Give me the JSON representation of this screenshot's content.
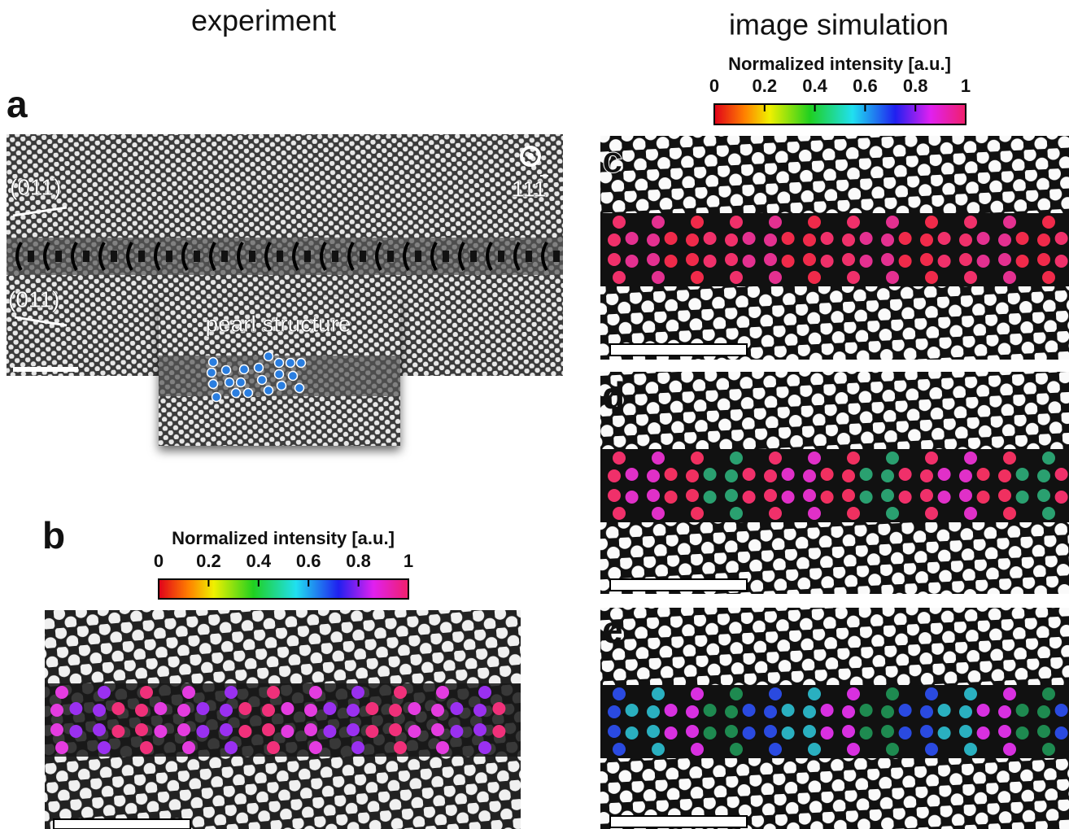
{
  "headers": {
    "experiment": "experiment",
    "simulation": "image simulation"
  },
  "panels": {
    "a": {
      "letter": "a",
      "plane_labels": [
        "(011)",
        "(011)"
      ],
      "direction": "111",
      "inset_label": "pearl structure"
    },
    "b": {
      "letter": "b"
    },
    "c": {
      "letter": "c"
    },
    "d": {
      "letter": "d"
    },
    "e": {
      "letter": "e"
    }
  },
  "colorbars": [
    {
      "label": "Normalized intensity [a.u.]",
      "ticks": [
        0,
        0.2,
        0.4,
        0.6,
        0.8,
        1
      ],
      "range": [
        0,
        1
      ]
    },
    {
      "label": "Normalized intensity [a.u.]",
      "ticks": [
        0,
        0.2,
        0.4,
        0.6,
        0.8,
        1
      ],
      "range": [
        0,
        1
      ]
    }
  ]
}
